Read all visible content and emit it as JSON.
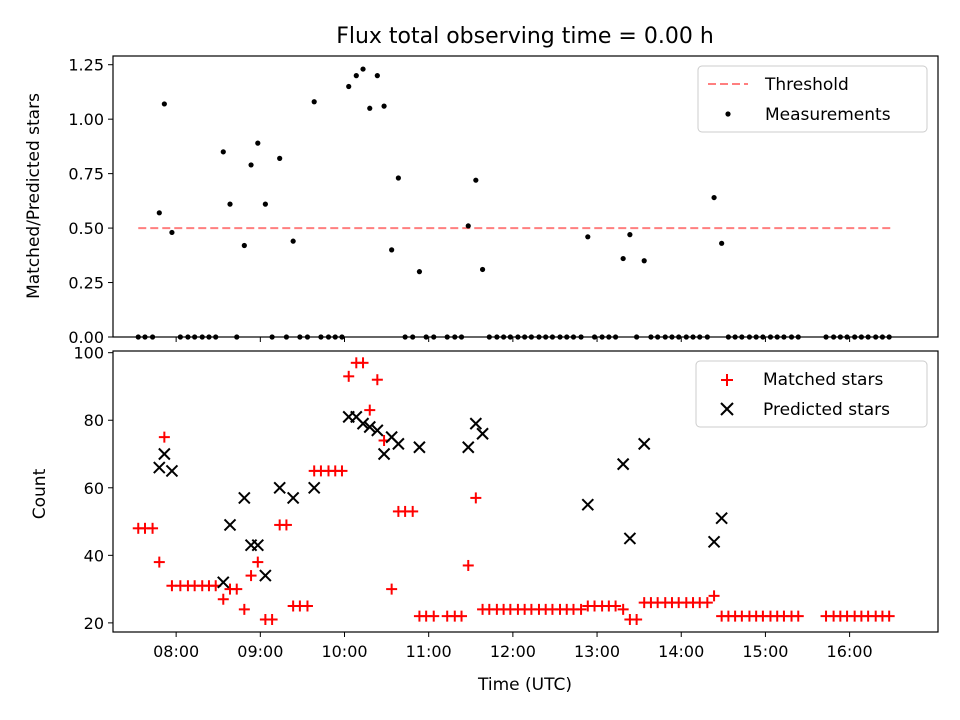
{
  "title": "Flux total observing time = 0.00 h",
  "colors": {
    "threshold": "#ff7f7f",
    "measurement": "#000000",
    "matched": "#ff0000",
    "predicted": "#000000"
  },
  "chart_data": [
    {
      "type": "scatter",
      "panel": "top",
      "ylabel": "Matched/Predicted stars",
      "xlim": [
        7.25,
        17.05
      ],
      "ylim": [
        0,
        1.29
      ],
      "yticks": [
        0,
        0.25,
        0.5,
        0.75,
        1.0,
        1.25
      ],
      "ytick_labels": [
        "0.00",
        "0.25",
        "0.50",
        "0.75",
        "1.00",
        "1.25"
      ],
      "threshold": {
        "name": "Threshold",
        "y": 0.5,
        "x_range": [
          7.55,
          16.5
        ]
      },
      "legend": {
        "entries": [
          "Threshold",
          "Measurements"
        ],
        "position": "upper right"
      },
      "series": [
        {
          "name": "Measurements",
          "x": [
            7.8,
            7.86,
            7.95,
            8.56,
            8.64,
            8.81,
            8.89,
            8.97,
            9.06,
            9.23,
            9.39,
            9.64,
            10.05,
            10.14,
            10.22,
            10.3,
            10.39,
            10.47,
            10.56,
            10.64,
            10.89,
            11.47,
            11.56,
            11.64,
            12.89,
            13.31,
            13.39,
            13.56,
            14.39,
            14.48,
            7.55,
            7.63,
            7.72,
            8.05,
            8.14,
            8.22,
            8.31,
            8.39,
            8.47,
            8.72,
            9.14,
            9.31,
            9.47,
            9.56,
            9.72,
            9.81,
            9.89,
            9.97,
            10.72,
            10.81,
            10.97,
            11.06,
            11.22,
            11.31,
            11.39,
            11.72,
            11.81,
            11.89,
            11.97,
            12.06,
            12.14,
            12.22,
            12.31,
            12.39,
            12.47,
            12.56,
            12.64,
            12.72,
            12.81,
            12.97,
            13.06,
            13.14,
            13.22,
            13.47,
            13.64,
            13.72,
            13.81,
            13.89,
            13.97,
            14.06,
            14.14,
            14.22,
            14.31,
            14.56,
            14.64,
            14.72,
            14.81,
            14.89,
            14.97,
            15.06,
            15.14,
            15.22,
            15.31,
            15.39,
            15.72,
            15.81,
            15.89,
            15.97,
            16.06,
            16.14,
            16.22,
            16.31,
            16.39,
            16.47
          ],
          "y": [
            0.57,
            1.07,
            0.48,
            0.85,
            0.61,
            0.42,
            0.79,
            0.89,
            0.61,
            0.82,
            0.44,
            1.08,
            1.15,
            1.2,
            1.23,
            1.05,
            1.2,
            1.06,
            0.4,
            0.73,
            0.3,
            0.51,
            0.72,
            0.31,
            0.46,
            0.36,
            0.47,
            0.35,
            0.64,
            0.43,
            0,
            0,
            0,
            0,
            0,
            0,
            0,
            0,
            0,
            0,
            0,
            0,
            0,
            0,
            0,
            0,
            0,
            0,
            0,
            0,
            0,
            0,
            0,
            0,
            0,
            0,
            0,
            0,
            0,
            0,
            0,
            0,
            0,
            0,
            0,
            0,
            0,
            0,
            0,
            0,
            0,
            0,
            0,
            0,
            0,
            0,
            0,
            0,
            0,
            0,
            0,
            0,
            0,
            0,
            0,
            0,
            0,
            0,
            0,
            0,
            0,
            0,
            0,
            0,
            0,
            0,
            0,
            0,
            0,
            0,
            0,
            0,
            0,
            0
          ]
        }
      ]
    },
    {
      "type": "scatter",
      "panel": "bottom",
      "ylabel": "Count",
      "xlabel": "Time (UTC)",
      "xlim": [
        7.25,
        17.05
      ],
      "ylim": [
        17.3,
        100.5
      ],
      "yticks": [
        20,
        40,
        60,
        80,
        100
      ],
      "ytick_labels": [
        "20",
        "40",
        "60",
        "80",
        "100"
      ],
      "xticks": [
        8,
        9,
        10,
        11,
        12,
        13,
        14,
        15,
        16
      ],
      "xtick_labels": [
        "08:00",
        "09:00",
        "10:00",
        "11:00",
        "12:00",
        "13:00",
        "14:00",
        "15:00",
        "16:00"
      ],
      "legend": {
        "entries": [
          "Matched stars",
          "Predicted stars"
        ],
        "position": "upper right"
      },
      "series": [
        {
          "name": "Matched stars",
          "x": [
            7.55,
            7.63,
            7.72,
            7.8,
            7.86,
            7.95,
            8.05,
            8.14,
            8.22,
            8.31,
            8.39,
            8.47,
            8.56,
            8.64,
            8.72,
            8.81,
            8.89,
            8.97,
            9.06,
            9.14,
            9.23,
            9.31,
            9.39,
            9.47,
            9.56,
            9.64,
            9.72,
            9.81,
            9.89,
            9.97,
            10.05,
            10.14,
            10.22,
            10.3,
            10.39,
            10.47,
            10.56,
            10.64,
            10.72,
            10.81,
            10.89,
            10.97,
            11.06,
            11.22,
            11.31,
            11.39,
            11.47,
            11.56,
            11.64,
            11.72,
            11.81,
            11.89,
            11.97,
            12.06,
            12.14,
            12.22,
            12.31,
            12.39,
            12.47,
            12.56,
            12.64,
            12.72,
            12.81,
            12.89,
            12.97,
            13.06,
            13.14,
            13.22,
            13.31,
            13.39,
            13.47,
            13.56,
            13.64,
            13.72,
            13.81,
            13.89,
            13.97,
            14.06,
            14.14,
            14.22,
            14.31,
            14.39,
            14.48,
            14.56,
            14.64,
            14.72,
            14.81,
            14.89,
            14.97,
            15.06,
            15.14,
            15.22,
            15.31,
            15.39,
            15.72,
            15.81,
            15.89,
            15.97,
            16.06,
            16.14,
            16.22,
            16.31,
            16.39,
            16.47
          ],
          "y": [
            48,
            48,
            48,
            38,
            75,
            31,
            31,
            31,
            31,
            31,
            31,
            31,
            27,
            30,
            30,
            24,
            34,
            38,
            21,
            21,
            49,
            49,
            25,
            25,
            25,
            65,
            65,
            65,
            65,
            65,
            93,
            97,
            97,
            83,
            92,
            74,
            30,
            53,
            53,
            53,
            22,
            22,
            22,
            22,
            22,
            22,
            37,
            57,
            24,
            24,
            24,
            24,
            24,
            24,
            24,
            24,
            24,
            24,
            24,
            24,
            24,
            24,
            24,
            25,
            25,
            25,
            25,
            25,
            24,
            21,
            21,
            26,
            26,
            26,
            26,
            26,
            26,
            26,
            26,
            26,
            26,
            28,
            22,
            22,
            22,
            22,
            22,
            22,
            22,
            22,
            22,
            22,
            22,
            22,
            22,
            22,
            22,
            22,
            22,
            22,
            22,
            22,
            22,
            22
          ]
        },
        {
          "name": "Predicted stars",
          "x": [
            7.8,
            7.86,
            7.95,
            8.56,
            8.64,
            8.81,
            8.89,
            8.97,
            9.06,
            9.23,
            9.39,
            9.64,
            10.05,
            10.14,
            10.22,
            10.3,
            10.39,
            10.47,
            10.56,
            10.64,
            10.89,
            11.47,
            11.56,
            11.64,
            12.89,
            13.31,
            13.39,
            13.56,
            14.39,
            14.48
          ],
          "y": [
            66,
            70,
            65,
            32,
            49,
            57,
            43,
            43,
            34,
            60,
            57,
            60,
            81,
            81,
            79,
            78,
            77,
            70,
            75,
            73,
            72,
            72,
            79,
            76,
            55,
            67,
            45,
            73,
            44,
            51
          ]
        }
      ]
    }
  ]
}
